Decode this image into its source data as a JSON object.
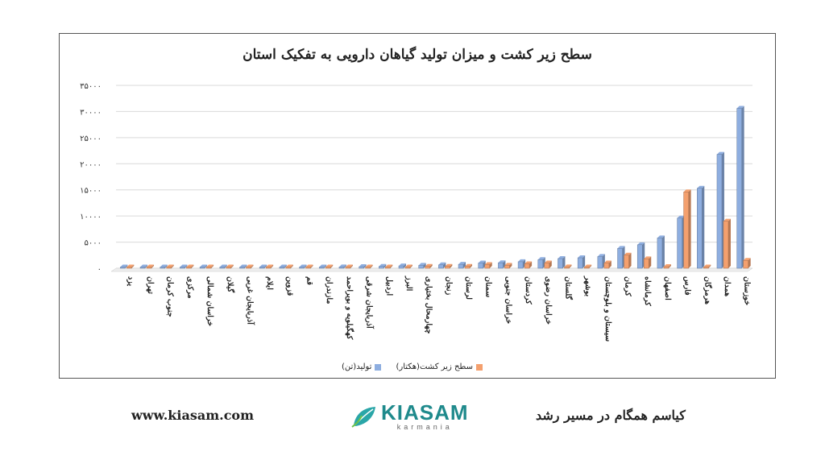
{
  "chart_data": {
    "type": "bar",
    "title": "سطح زیر کشت و میزان تولید گیاهان دارویی به تفکیک استان",
    "xlabel": "",
    "ylabel": "",
    "ylim": [
      0,
      35000
    ],
    "yticks": [
      0,
      5000,
      10000,
      15000,
      20000,
      25000,
      30000,
      35000
    ],
    "ytick_labels": [
      "۰",
      "۵۰۰۰",
      "۱۰۰۰۰",
      "۱۵۰۰۰",
      "۲۰۰۰۰",
      "۲۵۰۰۰",
      "۳۰۰۰۰",
      "۳۵۰۰۰"
    ],
    "grid": true,
    "legend_position": "bottom",
    "categories": [
      "یزد",
      "تهران",
      "جنوب کرمان",
      "مرکزی",
      "خراسان شمالی",
      "گیلان",
      "آذربایجان غربی",
      "ایلام",
      "قزوین",
      "قم",
      "مازندران",
      "کهگیلویه و بویراحمد",
      "آذربایجان شرقی",
      "اردبیل",
      "البرز",
      "چهارمحال بختیاری",
      "زنجان",
      "لرستان",
      "سمنان",
      "خراسان جنوبی",
      "کردستان",
      "خراسان رضوی",
      "گلستان",
      "بوشهر",
      "سیستان و بلوچستان",
      "کرمان",
      "کرمانشاه",
      "اصفهان",
      "فارس",
      "هرمزگان",
      "همدان",
      "خوزستان"
    ],
    "series": [
      {
        "name": "تولید(تن)",
        "color": "#8eaee0",
        "values": [
          20,
          30,
          40,
          50,
          60,
          80,
          100,
          120,
          140,
          160,
          200,
          250,
          300,
          350,
          450,
          550,
          650,
          750,
          1000,
          1050,
          1250,
          1650,
          1850,
          2000,
          2250,
          3800,
          4500,
          5800,
          9600,
          15300,
          21800,
          30600
        ]
      },
      {
        "name": "سطح زیر کشت(هکتار)",
        "color": "#f4a06e",
        "values": [
          10,
          20,
          20,
          30,
          30,
          40,
          50,
          60,
          60,
          70,
          90,
          100,
          120,
          150,
          180,
          350,
          350,
          350,
          700,
          550,
          850,
          1000,
          250,
          200,
          1000,
          2500,
          1800,
          300,
          14600,
          150,
          9000,
          1500
        ]
      }
    ]
  },
  "footer": {
    "url": "www.kiasam.com",
    "slogan": "کیاسم همگام در مسیر رشد",
    "logo_name": "KIASAM",
    "logo_sub": "karmania",
    "logo_icon": "leaf-icon"
  }
}
